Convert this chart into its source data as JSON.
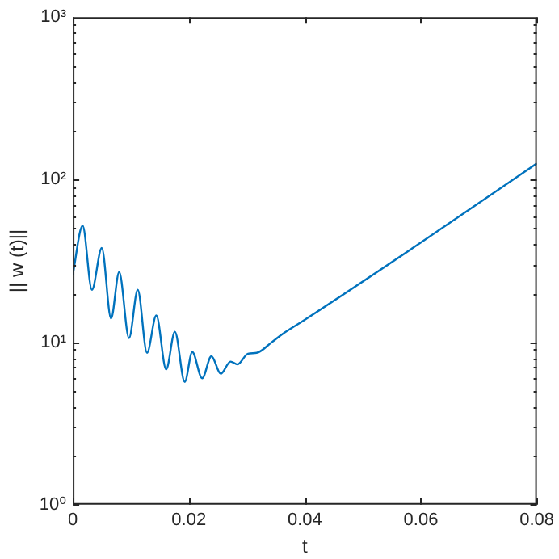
{
  "chart_data": {
    "type": "line",
    "xlabel": "t",
    "ylabel": "|| w (t)||",
    "log": "y",
    "grid": false,
    "legend": false,
    "marker": "none",
    "line_style": "solid",
    "xlim": [
      0,
      0.08
    ],
    "xticks": [
      0,
      0.02,
      0.04,
      0.06,
      0.08
    ],
    "ylim": [
      1,
      1000
    ],
    "yticks": [
      {
        "value": 1,
        "label": "10⁰"
      },
      {
        "value": 2,
        "label": null
      },
      {
        "value": 3,
        "label": null
      },
      {
        "value": 4,
        "label": null
      },
      {
        "value": 5,
        "label": null
      },
      {
        "value": 6,
        "label": null
      },
      {
        "value": 7,
        "label": null
      },
      {
        "value": 8,
        "label": null
      },
      {
        "value": 9,
        "label": null
      },
      {
        "value": 10,
        "label": "10¹"
      },
      {
        "value": 20,
        "label": null
      },
      {
        "value": 30,
        "label": null
      },
      {
        "value": 40,
        "label": null
      },
      {
        "value": 50,
        "label": null
      },
      {
        "value": 60,
        "label": null
      },
      {
        "value": 70,
        "label": null
      },
      {
        "value": 80,
        "label": null
      },
      {
        "value": 90,
        "label": null
      },
      {
        "value": 100,
        "label": "10²"
      },
      {
        "value": 200,
        "label": null
      },
      {
        "value": 300,
        "label": null
      },
      {
        "value": 400,
        "label": null
      },
      {
        "value": 500,
        "label": null
      },
      {
        "value": 600,
        "label": null
      },
      {
        "value": 700,
        "label": null
      },
      {
        "value": 800,
        "label": null
      },
      {
        "value": 900,
        "label": null
      },
      {
        "value": 1000,
        "label": "10³"
      }
    ],
    "series": [
      {
        "color": "#0072bd",
        "x": [
          0,
          0.0017,
          0.0033,
          0.005,
          0.0066,
          0.008,
          0.0097,
          0.0112,
          0.0128,
          0.0144,
          0.0161,
          0.0176,
          0.0193,
          0.0206,
          0.0223,
          0.0239,
          0.0255,
          0.0272,
          0.0284,
          0.0302,
          0.0317,
          0.0343,
          0.0361,
          0.0398,
          0.06,
          0.08
        ],
        "values": [
          26,
          52,
          21,
          38,
          14,
          27,
          10.6,
          21,
          8.6,
          14.6,
          6.8,
          11.6,
          5.7,
          8.7,
          6,
          8.2,
          6.4,
          7.6,
          7.3,
          8.5,
          8.6,
          10,
          11.2,
          13.6,
          41,
          126
        ]
      }
    ]
  }
}
